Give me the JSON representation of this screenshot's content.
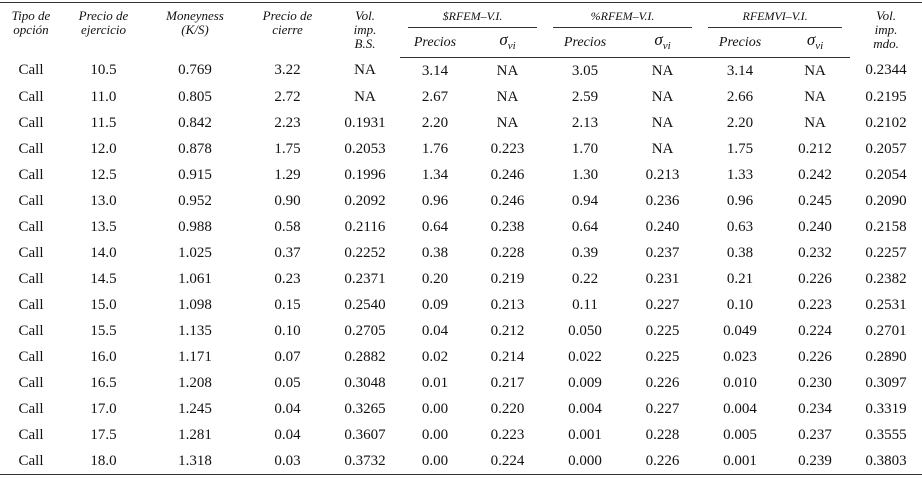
{
  "table": {
    "header": {
      "columns": [
        [
          "Tipo de",
          "opción"
        ],
        [
          "Precio de",
          "ejercicio"
        ],
        [
          "Moneyness",
          "(K/S)"
        ],
        [
          "Precio de",
          "cierre"
        ],
        [
          "Vol.",
          "imp.",
          "B.S."
        ]
      ],
      "groups": [
        {
          "title": "$RFEM–V.I.",
          "price": "Precios",
          "sigma": "σ",
          "sigma_sub": "vi"
        },
        {
          "title": "%RFEM–V.I.",
          "price": "Precios",
          "sigma": "σ",
          "sigma_sub": "vi"
        },
        {
          "title": "RFEMVI–V.I.",
          "price": "Precios",
          "sigma": "σ",
          "sigma_sub": "vi"
        }
      ],
      "last": [
        "Vol.",
        "imp.",
        "mdo."
      ]
    },
    "rows": [
      [
        "Call",
        "10.5",
        "0.769",
        "3.22",
        "NA",
        "3.14",
        "NA",
        "3.05",
        "NA",
        "3.14",
        "NA",
        "0.2344"
      ],
      [
        "Call",
        "11.0",
        "0.805",
        "2.72",
        "NA",
        "2.67",
        "NA",
        "2.59",
        "NA",
        "2.66",
        "NA",
        "0.2195"
      ],
      [
        "Call",
        "11.5",
        "0.842",
        "2.23",
        "0.1931",
        "2.20",
        "NA",
        "2.13",
        "NA",
        "2.20",
        "NA",
        "0.2102"
      ],
      [
        "Call",
        "12.0",
        "0.878",
        "1.75",
        "0.2053",
        "1.76",
        "0.223",
        "1.70",
        "NA",
        "1.75",
        "0.212",
        "0.2057"
      ],
      [
        "Call",
        "12.5",
        "0.915",
        "1.29",
        "0.1996",
        "1.34",
        "0.246",
        "1.30",
        "0.213",
        "1.33",
        "0.242",
        "0.2054"
      ],
      [
        "Call",
        "13.0",
        "0.952",
        "0.90",
        "0.2092",
        "0.96",
        "0.246",
        "0.94",
        "0.236",
        "0.96",
        "0.245",
        "0.2090"
      ],
      [
        "Call",
        "13.5",
        "0.988",
        "0.58",
        "0.2116",
        "0.64",
        "0.238",
        "0.64",
        "0.240",
        "0.63",
        "0.240",
        "0.2158"
      ],
      [
        "Call",
        "14.0",
        "1.025",
        "0.37",
        "0.2252",
        "0.38",
        "0.228",
        "0.39",
        "0.237",
        "0.38",
        "0.232",
        "0.2257"
      ],
      [
        "Call",
        "14.5",
        "1.061",
        "0.23",
        "0.2371",
        "0.20",
        "0.219",
        "0.22",
        "0.231",
        "0.21",
        "0.226",
        "0.2382"
      ],
      [
        "Call",
        "15.0",
        "1.098",
        "0.15",
        "0.2540",
        "0.09",
        "0.213",
        "0.11",
        "0.227",
        "0.10",
        "0.223",
        "0.2531"
      ],
      [
        "Call",
        "15.5",
        "1.135",
        "0.10",
        "0.2705",
        "0.04",
        "0.212",
        "0.050",
        "0.225",
        "0.049",
        "0.224",
        "0.2701"
      ],
      [
        "Call",
        "16.0",
        "1.171",
        "0.07",
        "0.2882",
        "0.02",
        "0.214",
        "0.022",
        "0.225",
        "0.023",
        "0.226",
        "0.2890"
      ],
      [
        "Call",
        "16.5",
        "1.208",
        "0.05",
        "0.3048",
        "0.01",
        "0.217",
        "0.009",
        "0.226",
        "0.010",
        "0.230",
        "0.3097"
      ],
      [
        "Call",
        "17.0",
        "1.245",
        "0.04",
        "0.3265",
        "0.00",
        "0.220",
        "0.004",
        "0.227",
        "0.004",
        "0.234",
        "0.3319"
      ],
      [
        "Call",
        "17.5",
        "1.281",
        "0.04",
        "0.3607",
        "0.00",
        "0.223",
        "0.001",
        "0.228",
        "0.005",
        "0.237",
        "0.3555"
      ],
      [
        "Call",
        "18.0",
        "1.318",
        "0.03",
        "0.3732",
        "0.00",
        "0.224",
        "0.000",
        "0.226",
        "0.001",
        "0.239",
        "0.3803"
      ]
    ]
  }
}
